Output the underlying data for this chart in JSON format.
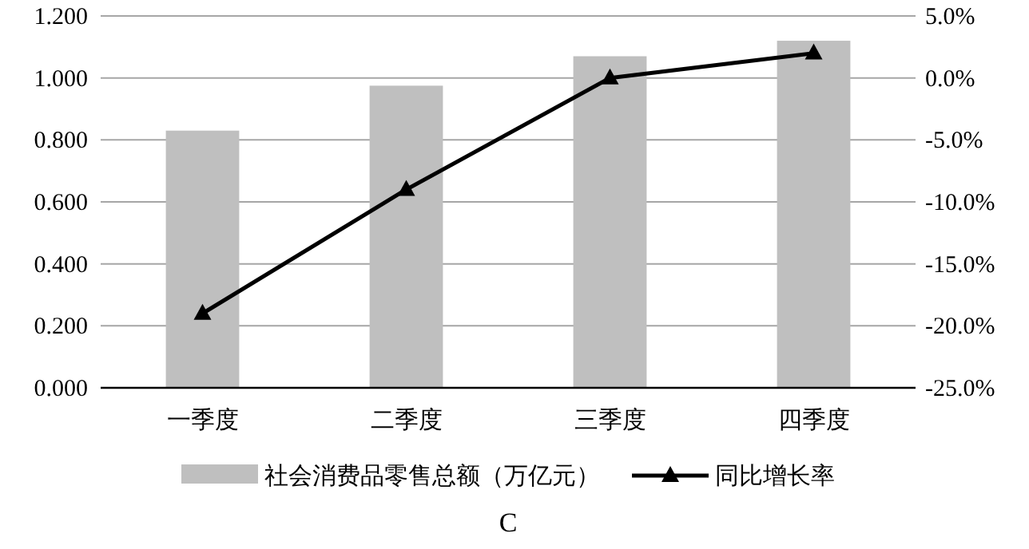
{
  "chart_data": {
    "type": "bar",
    "categories": [
      "一季度",
      "二季度",
      "三季度",
      "四季度"
    ],
    "series": [
      {
        "name": "社会消费品零售总额（万亿元）",
        "color": "#bfbfbf",
        "values": [
          0.83,
          0.975,
          1.07,
          1.12
        ]
      },
      {
        "name": "同比增长率",
        "type": "line",
        "axis": "y2",
        "color": "#000000",
        "marker": "triangle",
        "values": [
          -19.0,
          -9.0,
          0.0,
          2.0
        ]
      }
    ],
    "ylim": [
      0,
      1.2
    ],
    "yticks": [
      {
        "value": 0,
        "label": "0.000"
      },
      {
        "value": 0.2,
        "label": "0.200"
      },
      {
        "value": 0.4,
        "label": "0.400"
      },
      {
        "value": 0.6,
        "label": "0.600"
      },
      {
        "value": 0.8,
        "label": "0.800"
      },
      {
        "value": 1.0,
        "label": "1.000"
      },
      {
        "value": 1.2,
        "label": "1.200"
      }
    ],
    "y2lim": [
      -25,
      5
    ],
    "y2ticks": [
      {
        "value": -25,
        "label": "-25.0%"
      },
      {
        "value": -20,
        "label": "-20.0%"
      },
      {
        "value": -15,
        "label": "-15.0%"
      },
      {
        "value": -10,
        "label": "-10.0%"
      },
      {
        "value": -5,
        "label": "-5.0%"
      },
      {
        "value": 0,
        "label": "0.0%"
      },
      {
        "value": 5,
        "label": "5.0%"
      }
    ],
    "grid": "y",
    "legend": "bottom",
    "annotations": [
      "C"
    ]
  }
}
